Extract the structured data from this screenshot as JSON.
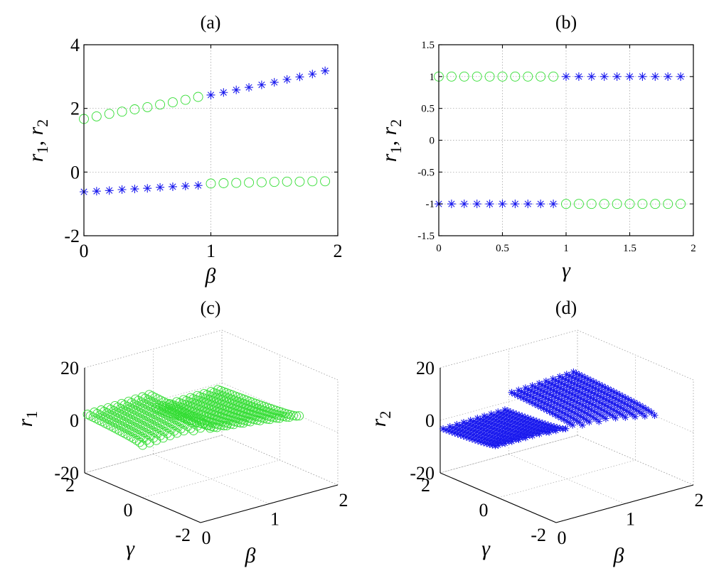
{
  "colors": {
    "green": "#33dd33",
    "blue": "#1a1aee"
  },
  "chart_data": [
    {
      "type": "scatter",
      "title": "(a)",
      "xlabel": "β",
      "ylabel": "r1, r2",
      "ylabel_parts": {
        "r": "r",
        "s1": "1",
        "sep": ", ",
        "s2": "2"
      },
      "xlim": [
        0,
        2
      ],
      "ylim": [
        -2,
        4
      ],
      "xticks": [
        0,
        1,
        2
      ],
      "yticks": [
        -2,
        0,
        2,
        4
      ],
      "x": [
        0.0,
        0.1,
        0.2,
        0.3,
        0.4,
        0.5,
        0.6,
        0.7,
        0.8,
        0.9,
        1.0,
        1.1,
        1.2,
        1.3,
        1.4,
        1.5,
        1.6,
        1.7,
        1.8,
        1.9
      ],
      "series": [
        {
          "marker": "circle",
          "color": "green",
          "values": [
            1.67,
            1.75,
            1.83,
            1.9,
            1.97,
            2.04,
            2.12,
            2.19,
            2.27,
            2.36,
            -0.36,
            -0.35,
            -0.34,
            -0.33,
            -0.32,
            -0.31,
            -0.3,
            -0.3,
            -0.29,
            -0.29
          ]
        },
        {
          "marker": "star",
          "color": "blue",
          "values": [
            -0.62,
            -0.6,
            -0.58,
            -0.55,
            -0.53,
            -0.51,
            -0.48,
            -0.46,
            -0.44,
            -0.42,
            2.42,
            2.5,
            2.58,
            2.66,
            2.74,
            2.82,
            2.91,
            2.99,
            3.08,
            3.18
          ]
        }
      ]
    },
    {
      "type": "scatter",
      "title": "(b)",
      "xlabel": "γ",
      "ylabel": "r1, r2",
      "ylabel_parts": {
        "r": "r",
        "s1": "1",
        "sep": ", ",
        "s2": "2"
      },
      "xlim": [
        0,
        2
      ],
      "ylim": [
        -1.5,
        1.5
      ],
      "xticks": [
        0,
        0.5,
        1,
        1.5,
        2
      ],
      "yticks": [
        -1.5,
        -1,
        -0.5,
        0,
        0.5,
        1,
        1.5
      ],
      "x": [
        0.0,
        0.1,
        0.2,
        0.3,
        0.4,
        0.5,
        0.6,
        0.7,
        0.8,
        0.9,
        1.0,
        1.1,
        1.2,
        1.3,
        1.4,
        1.5,
        1.6,
        1.7,
        1.8,
        1.9
      ],
      "series": [
        {
          "marker": "circle",
          "color": "green",
          "values": [
            1,
            1,
            1,
            1,
            1,
            1,
            1,
            1,
            1,
            1,
            -1,
            -1,
            -1,
            -1,
            -1,
            -1,
            -1,
            -1,
            -1,
            -1
          ]
        },
        {
          "marker": "star",
          "color": "blue",
          "values": [
            -1,
            -1,
            -1,
            -1,
            -1,
            -1,
            -1,
            -1,
            -1,
            -1,
            1,
            1,
            1,
            1,
            1,
            1,
            1,
            1,
            1,
            1
          ]
        }
      ]
    },
    {
      "type": "scatter3d",
      "title": "(c)",
      "xlabel": "β",
      "ylabel": "γ",
      "zlabel": "r1",
      "zlabel_parts": {
        "r": "r",
        "s": "1"
      },
      "xlim": [
        0,
        2
      ],
      "ylim": [
        -2,
        2
      ],
      "zlim": [
        -20,
        20
      ],
      "xticks": [
        0,
        1,
        2
      ],
      "yticks": [
        -2,
        0,
        2
      ],
      "zticks": [
        -20,
        0,
        20
      ],
      "marker": "circle",
      "color": "green",
      "formula": "r1 = beta + sqrt(beta^2 + 4 gamma) for beta < 1, beta - sqrt(beta^2 + 4 gamma) for beta >= 1, over beta 0..1.9 and gamma -1.9..1.9 (step 0.1)"
    },
    {
      "type": "scatter3d",
      "title": "(d)",
      "xlabel": "β",
      "ylabel": "γ",
      "zlabel": "r2",
      "zlabel_parts": {
        "r": "r",
        "s": "2"
      },
      "xlim": [
        0,
        2
      ],
      "ylim": [
        -2,
        2
      ],
      "zlim": [
        -20,
        20
      ],
      "xticks": [
        0,
        1,
        2
      ],
      "yticks": [
        -2,
        0,
        2
      ],
      "zticks": [
        -20,
        0,
        20
      ],
      "marker": "star",
      "color": "blue",
      "formula": "r2 = beta - sqrt(beta^2 + 4 gamma) for beta < 1, beta + sqrt(beta^2 + 4 gamma) for beta >= 1, over beta 0..1.9 and gamma -1.9..1.9 (step 0.1)"
    }
  ]
}
